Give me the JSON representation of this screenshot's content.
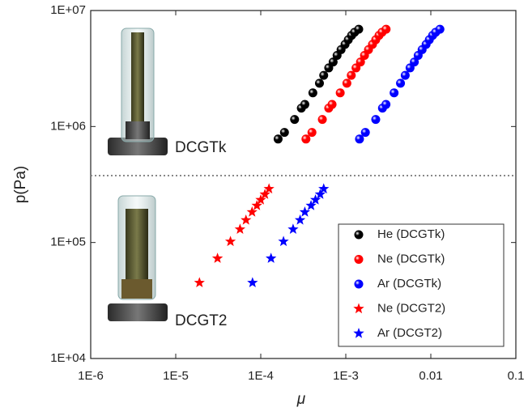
{
  "chart_data": {
    "type": "scatter",
    "xlabel": "μ",
    "ylabel": "p(Pa)",
    "log_x": true,
    "log_y": true,
    "xlim": [
      1e-06,
      0.1
    ],
    "ylim": [
      10000,
      10000000
    ],
    "xticks": [
      {
        "value": 1e-06,
        "label": "1E-6"
      },
      {
        "value": 1e-05,
        "label": "1E-5"
      },
      {
        "value": 0.0001,
        "label": "1E-4"
      },
      {
        "value": 0.001,
        "label": "1E-3"
      },
      0.01,
      0.1
    ],
    "yticks": [
      {
        "value": 10000,
        "label": "1E+04"
      },
      {
        "value": 100000,
        "label": "1E+05"
      },
      {
        "value": 1000000,
        "label": "1E+06"
      },
      {
        "value": 10000000,
        "label": "1E+07"
      }
    ],
    "divider": 377000,
    "annotations": [
      "DCGTk",
      "DCGT2"
    ],
    "legend_position": "lower right",
    "series": [
      {
        "name": "He (DCGTk)",
        "color": "#000000",
        "marker": "sphere",
        "x": [
          0.00016,
          0.00019,
          0.00025,
          0.0003,
          0.00033,
          0.00041,
          0.00049,
          0.00055,
          0.00063,
          0.00071,
          0.00079,
          0.00088,
          0.00098,
          0.00107,
          0.00117,
          0.00127,
          0.00142
        ],
        "values": [
          780000,
          890000,
          1150000,
          1440000,
          1550000,
          1950000,
          2360000,
          2760000,
          3200000,
          3600000,
          4100000,
          4600000,
          5100000,
          5600000,
          6100000,
          6500000,
          6900000
        ]
      },
      {
        "name": "Ne (DCGTk)",
        "color": "#ff0000",
        "marker": "sphere",
        "x": [
          0.00034,
          0.0004,
          0.00053,
          0.00063,
          0.00069,
          0.00086,
          0.00103,
          0.00116,
          0.00132,
          0.00149,
          0.00166,
          0.00185,
          0.00206,
          0.00225,
          0.00246,
          0.00267,
          0.00298
        ],
        "values": [
          780000,
          890000,
          1150000,
          1440000,
          1550000,
          1950000,
          2360000,
          2760000,
          3200000,
          3600000,
          4100000,
          4600000,
          5100000,
          5600000,
          6100000,
          6500000,
          6900000
        ]
      },
      {
        "name": "Ar  (DCGTk)",
        "color": "#0000ff",
        "marker": "sphere",
        "x": [
          0.00145,
          0.0017,
          0.00225,
          0.0027,
          0.00297,
          0.0037,
          0.0044,
          0.005,
          0.0057,
          0.0064,
          0.0071,
          0.0079,
          0.0088,
          0.0096,
          0.0105,
          0.0114,
          0.0128
        ],
        "values": [
          780000,
          890000,
          1150000,
          1440000,
          1550000,
          1950000,
          2360000,
          2760000,
          3200000,
          3600000,
          4100000,
          4600000,
          5100000,
          5600000,
          6100000,
          6500000,
          6900000
        ]
      },
      {
        "name": "Ne (DCGT2)",
        "color": "#ff0000",
        "marker": "star",
        "x": [
          1.9e-05,
          3.1e-05,
          4.4e-05,
          5.7e-05,
          6.7e-05,
          7.9e-05,
          9e-05,
          0.0001,
          0.000112,
          0.000125
        ],
        "values": [
          45000,
          73000,
          102000,
          130000,
          156000,
          183000,
          208000,
          233000,
          260000,
          290000
        ]
      },
      {
        "name": "Ar  (DCGT2)",
        "color": "#0000ff",
        "marker": "star",
        "x": [
          8e-05,
          0.000132,
          0.000185,
          0.00024,
          0.00029,
          0.00033,
          0.00039,
          0.00044,
          0.0005,
          0.00055
        ],
        "values": [
          45000,
          73000,
          102000,
          130000,
          156000,
          183000,
          208000,
          233000,
          260000,
          290000
        ]
      }
    ]
  }
}
